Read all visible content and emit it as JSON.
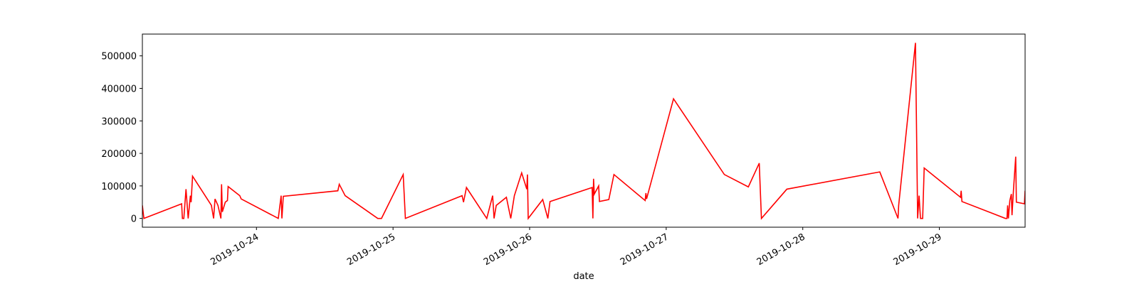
{
  "chart_data": {
    "type": "line",
    "x_label": "date",
    "color": "#ff0000",
    "x": [
      "2019-10-23T03:57",
      "2019-10-23T04:13",
      "2019-10-23T10:51",
      "2019-10-23T10:59",
      "2019-10-23T11:14",
      "2019-10-23T11:37",
      "2019-10-23T12:00",
      "2019-10-23T12:23",
      "2019-10-23T12:31",
      "2019-10-23T12:46",
      "2019-10-23T16:05",
      "2019-10-23T16:28",
      "2019-10-23T16:43",
      "2019-10-23T17:14",
      "2019-10-23T17:45",
      "2019-10-23T17:52",
      "2019-10-23T18:00",
      "2019-10-23T18:31",
      "2019-10-23T18:54",
      "2019-10-23T19:01",
      "2019-10-23T21:04",
      "2019-10-23T21:19",
      "2019-10-24T03:50",
      "2019-10-24T04:20",
      "2019-10-24T04:28",
      "2019-10-24T04:43",
      "2019-10-24T14:18",
      "2019-10-24T14:33",
      "2019-10-24T15:35",
      "2019-10-24T21:19",
      "2019-10-24T21:58",
      "2019-10-25T01:47",
      "2019-10-25T02:10",
      "2019-10-25T12:08",
      "2019-10-25T12:23",
      "2019-10-25T12:54",
      "2019-10-25T16:28",
      "2019-10-25T17:30",
      "2019-10-25T17:45",
      "2019-10-25T18:08",
      "2019-10-25T19:55",
      "2019-10-25T20:41",
      "2019-10-25T21:19",
      "2019-10-25T22:36",
      "2019-10-25T23:30",
      "2019-10-25T23:37",
      "2019-10-25T23:45",
      "2019-10-26T02:18",
      "2019-10-26T03:12",
      "2019-10-26T03:35",
      "2019-10-26T10:59",
      "2019-10-26T11:07",
      "2019-10-26T11:14",
      "2019-10-26T11:22",
      "2019-10-26T12:08",
      "2019-10-26T12:16",
      "2019-10-26T13:55",
      "2019-10-26T14:49",
      "2019-10-26T20:18",
      "2019-10-26T20:26",
      "2019-10-26T20:33",
      "2019-10-27T01:17",
      "2019-10-27T10:13",
      "2019-10-27T14:26",
      "2019-10-27T16:21",
      "2019-10-27T16:44",
      "2019-10-27T21:12",
      "2019-10-28T13:32",
      "2019-10-28T16:44",
      "2019-10-28T16:51",
      "2019-10-28T19:48",
      "2019-10-28T20:11",
      "2019-10-28T20:26",
      "2019-10-28T20:41",
      "2019-10-28T21:04",
      "2019-10-28T21:20",
      "2019-10-29T03:43",
      "2019-10-29T03:50",
      "2019-10-29T03:58",
      "2019-10-29T11:37",
      "2019-10-29T11:53",
      "2019-10-29T12:00",
      "2019-10-29T12:08",
      "2019-10-29T12:23",
      "2019-10-29T12:39",
      "2019-10-29T12:46",
      "2019-10-29T13:02",
      "2019-10-29T13:25",
      "2019-10-29T13:32",
      "2019-10-29T14:57",
      "2019-10-29T15:04"
    ],
    "values": [
      40000,
      0,
      45000,
      0,
      0,
      90000,
      0,
      70000,
      50000,
      130000,
      40000,
      0,
      60000,
      40000,
      0,
      105000,
      20000,
      50000,
      55000,
      98000,
      70000,
      60000,
      0,
      70000,
      0,
      68000,
      85000,
      105000,
      70000,
      0,
      0,
      135000,
      0,
      70000,
      50000,
      95000,
      0,
      70000,
      0,
      40000,
      65000,
      0,
      70000,
      140000,
      90000,
      135000,
      0,
      58000,
      0,
      52000,
      95000,
      0,
      122000,
      75000,
      100000,
      52000,
      58000,
      135000,
      55000,
      78000,
      60000,
      368000,
      135000,
      97000,
      170000,
      0,
      90000,
      143000,
      0,
      40000,
      540000,
      0,
      70000,
      0,
      0,
      155000,
      65000,
      85000,
      52000,
      0,
      0,
      40000,
      0,
      55000,
      75000,
      10000,
      90000,
      190000,
      50000,
      45000,
      85000
    ],
    "xlim": [
      "2019-10-23T03:57",
      "2019-10-29T15:04"
    ],
    "xticks": [
      "2019-10-24",
      "2019-10-25",
      "2019-10-26",
      "2019-10-27",
      "2019-10-28",
      "2019-10-29"
    ],
    "ylim": [
      -27000,
      567000
    ],
    "yticks": [
      0,
      100000,
      200000,
      300000,
      400000,
      500000
    ]
  }
}
